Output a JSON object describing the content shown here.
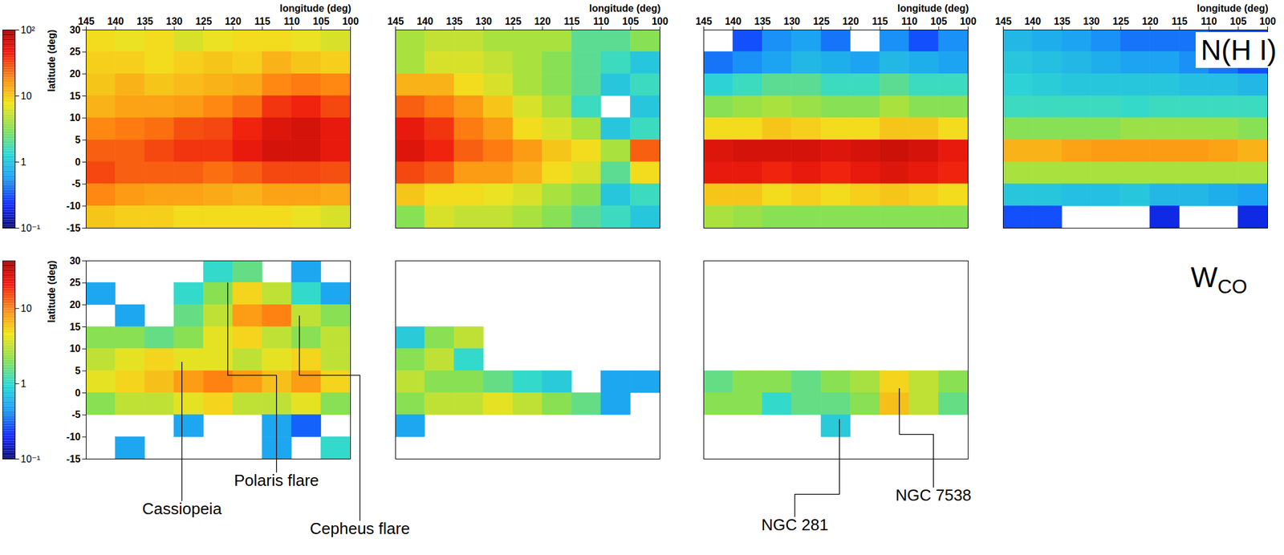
{
  "chart_data": [
    {
      "type": "heatmap",
      "label": "N(H I)",
      "log": true,
      "xlabel": "longitude (deg)",
      "ylabel": "latitude (deg)",
      "xlim": [
        145,
        100
      ],
      "ylim": [
        -15,
        30
      ],
      "xticks": [
        145,
        140,
        135,
        130,
        125,
        120,
        115,
        110,
        105,
        100
      ],
      "yticks": [
        -15,
        -10,
        -5,
        0,
        5,
        10,
        15,
        20,
        25,
        30
      ],
      "x": [
        142.5,
        137.5,
        132.5,
        127.5,
        122.5,
        117.5,
        112.5,
        107.5,
        102.5
      ],
      "y": [
        27.5,
        22.5,
        17.5,
        12.5,
        7.5,
        2.5,
        -2.5,
        -7.5,
        -12.5
      ],
      "colorbar": {
        "range": [
          0.1,
          100
        ],
        "ticks": [
          {
            "value": 100,
            "label": "10²"
          },
          10,
          1,
          {
            "value": 0.1,
            "label": "10⁻¹"
          }
        ]
      },
      "panels": [
        {
          "tick_labels": true,
          "cells": [
            [
              8,
              7,
              8,
              6,
              7,
              8,
              8,
              7,
              6
            ],
            [
              9,
              9,
              8,
              9,
              10,
              9,
              12,
              10,
              9
            ],
            [
              10,
              12,
              10,
              11,
              12,
              13,
              18,
              20,
              18
            ],
            [
              12,
              14,
              14,
              15,
              18,
              22,
              35,
              40,
              30
            ],
            [
              18,
              20,
              22,
              28,
              30,
              40,
              50,
              55,
              45
            ],
            [
              25,
              25,
              30,
              35,
              35,
              45,
              55,
              55,
              45
            ],
            [
              30,
              25,
              25,
              25,
              22,
              25,
              30,
              30,
              28
            ],
            [
              18,
              15,
              14,
              14,
              13,
              12,
              14,
              14,
              13
            ],
            [
              10,
              9,
              9,
              8,
              8,
              8,
              8,
              7,
              6
            ]
          ]
        },
        {
          "tick_labels": "x",
          "cells": [
            [
              4,
              5,
              5,
              4,
              4,
              4,
              2,
              2,
              3
            ],
            [
              4,
              6,
              6,
              5,
              4,
              3,
              2,
              1.5,
              1
            ],
            [
              12,
              12,
              8,
              6,
              4,
              3,
              2,
              1,
              1.5
            ],
            [
              25,
              20,
              15,
              10,
              6,
              4,
              1.5,
              null,
              1
            ],
            [
              45,
              35,
              20,
              15,
              8,
              6,
              4,
              1,
              1.5
            ],
            [
              50,
              40,
              25,
              20,
              15,
              10,
              8,
              4,
              25
            ],
            [
              30,
              25,
              15,
              15,
              12,
              8,
              6,
              2,
              8
            ],
            [
              10,
              8,
              8,
              7,
              6,
              4,
              3,
              1,
              1.5
            ],
            [
              3,
              6,
              5,
              5,
              4,
              3,
              2,
              1.5,
              1
            ]
          ]
        },
        {
          "tick_labels": "x",
          "cells": [
            [
              null,
              0.3,
              0.5,
              0.6,
              0.4,
              null,
              0.5,
              0.3,
              0.5
            ],
            [
              0.4,
              0.5,
              0.6,
              0.8,
              0.7,
              0.6,
              0.8,
              0.7,
              0.6
            ],
            [
              1.2,
              1.5,
              2,
              2,
              1.5,
              1.5,
              2,
              1.5,
              1.5
            ],
            [
              3,
              3.5,
              4,
              3.5,
              3,
              3,
              4,
              3,
              3
            ],
            [
              8,
              8,
              10,
              9,
              8,
              8,
              10,
              10,
              8
            ],
            [
              50,
              55,
              55,
              55,
              50,
              55,
              60,
              55,
              45
            ],
            [
              45,
              45,
              40,
              45,
              40,
              45,
              50,
              45,
              40
            ],
            [
              10,
              10,
              8,
              9,
              8,
              9,
              10,
              9,
              8
            ],
            [
              4,
              3.5,
              3,
              3,
              3,
              3,
              3,
              3,
              3
            ]
          ]
        },
        {
          "tick_labels": "x",
          "cells": [
            [
              0.8,
              0.7,
              0.6,
              0.5,
              0.4,
              0.4,
              0.4,
              0.3,
              0.3
            ],
            [
              1,
              0.9,
              0.8,
              0.7,
              0.6,
              0.6,
              0.5,
              0.4,
              0.3
            ],
            [
              1.2,
              1.1,
              1,
              1,
              1,
              1,
              0.9,
              0.9,
              0.8
            ],
            [
              1.5,
              1.5,
              1.5,
              1.5,
              1.4,
              1.5,
              1.5,
              1.5,
              1.5
            ],
            [
              3,
              3,
              3,
              3,
              3.5,
              3.5,
              3.5,
              3.5,
              3
            ],
            [
              12,
              12,
              14,
              15,
              15,
              15,
              15,
              14,
              12
            ],
            [
              4,
              4,
              4,
              4,
              4,
              4,
              4,
              4,
              4
            ],
            [
              1,
              1,
              0.9,
              0.9,
              1,
              0.8,
              0.8,
              0.7,
              0.6
            ],
            [
              0.3,
              0.3,
              null,
              null,
              null,
              0.2,
              null,
              null,
              0.2
            ]
          ]
        }
      ]
    },
    {
      "type": "heatmap",
      "label": {
        "text": "W",
        "subscript": "CO"
      },
      "log": true,
      "ylabel": "latitude (deg)",
      "xlim": [
        145,
        100
      ],
      "ylim": [
        -15,
        30
      ],
      "yticks": [
        -15,
        -10,
        -5,
        0,
        5,
        10,
        15,
        20,
        25,
        30
      ],
      "x": [
        142.5,
        137.5,
        132.5,
        127.5,
        122.5,
        117.5,
        112.5,
        107.5,
        102.5
      ],
      "y": [
        27.5,
        22.5,
        17.5,
        12.5,
        7.5,
        2.5,
        -2.5,
        -7.5,
        -12.5
      ],
      "colorbar": {
        "range": [
          0.1,
          43
        ],
        "ticks": [
          10,
          1,
          {
            "value": 0.1,
            "label": "10⁻¹"
          }
        ]
      },
      "panels": [
        {
          "tick_labels": "y",
          "cells": [
            [
              null,
              null,
              null,
              null,
              1,
              1.5,
              null,
              0.5,
              null
            ],
            [
              0.5,
              null,
              null,
              1,
              2,
              5,
              3,
              1,
              0.5
            ],
            [
              null,
              0.5,
              null,
              1.5,
              3,
              8,
              10,
              3,
              2
            ],
            [
              2,
              2,
              1.5,
              2,
              4,
              5,
              3,
              2,
              3
            ],
            [
              3,
              4,
              5,
              4,
              4,
              3,
              4,
              5,
              3
            ],
            [
              4,
              5,
              6,
              8,
              10,
              8,
              6,
              8,
              5
            ],
            [
              2,
              3,
              3,
              4,
              5,
              3,
              3,
              4,
              2
            ],
            [
              null,
              null,
              null,
              0.5,
              null,
              null,
              0.5,
              0.3,
              null
            ],
            [
              null,
              0.5,
              null,
              null,
              null,
              null,
              0.5,
              null,
              1
            ]
          ],
          "annotations": [
            {
              "text": "Cassiopeia",
              "lon": 128.7,
              "lat": 7
            },
            {
              "text": "Polaris flare",
              "lon": [
                120.9,
                112.6
              ],
              "lat": [
                25,
                4
              ]
            },
            {
              "text": "Cepheus flare",
              "lon": [
                108.7,
                98.4
              ],
              "lat": [
                17.5,
                4
              ]
            }
          ]
        },
        {
          "tick_labels": false,
          "cells": [
            [
              null,
              null,
              null,
              null,
              null,
              null,
              null,
              null,
              null
            ],
            [
              null,
              null,
              null,
              null,
              null,
              null,
              null,
              null,
              null
            ],
            [
              null,
              null,
              null,
              null,
              null,
              null,
              null,
              null,
              null
            ],
            [
              0.8,
              2,
              3,
              null,
              null,
              null,
              null,
              null,
              null
            ],
            [
              2,
              3,
              1,
              null,
              null,
              null,
              null,
              null,
              null
            ],
            [
              3,
              2,
              2,
              1.5,
              1,
              0.8,
              null,
              0.5,
              0.5
            ],
            [
              2,
              3,
              3,
              4,
              3,
              2,
              1.5,
              0.5,
              null
            ],
            [
              0.5,
              null,
              null,
              null,
              null,
              null,
              null,
              null,
              null
            ],
            [
              null,
              null,
              null,
              null,
              null,
              null,
              null,
              null,
              null
            ]
          ]
        },
        {
          "tick_labels": false,
          "cells": [
            [
              null,
              null,
              null,
              null,
              null,
              null,
              null,
              null,
              null
            ],
            [
              null,
              null,
              null,
              null,
              null,
              null,
              null,
              null,
              null
            ],
            [
              null,
              null,
              null,
              null,
              null,
              null,
              null,
              null,
              null
            ],
            [
              null,
              null,
              null,
              null,
              null,
              null,
              null,
              null,
              null
            ],
            [
              null,
              null,
              null,
              null,
              null,
              null,
              null,
              null,
              null
            ],
            [
              1.5,
              2,
              2,
              1.5,
              2,
              2.5,
              5,
              3,
              2
            ],
            [
              2,
              2,
              1,
              1.5,
              1.5,
              2,
              6,
              3,
              1.5
            ],
            [
              null,
              null,
              null,
              null,
              0.8,
              null,
              null,
              null,
              null
            ],
            [
              null,
              null,
              null,
              null,
              null,
              null,
              null,
              null,
              null
            ]
          ],
          "annotations": [
            {
              "text": "NGC 281",
              "lon": 121.9,
              "lat": -6
            },
            {
              "text": "NGC 7538",
              "lon": 111.7,
              "lat": 1
            }
          ]
        }
      ]
    }
  ]
}
